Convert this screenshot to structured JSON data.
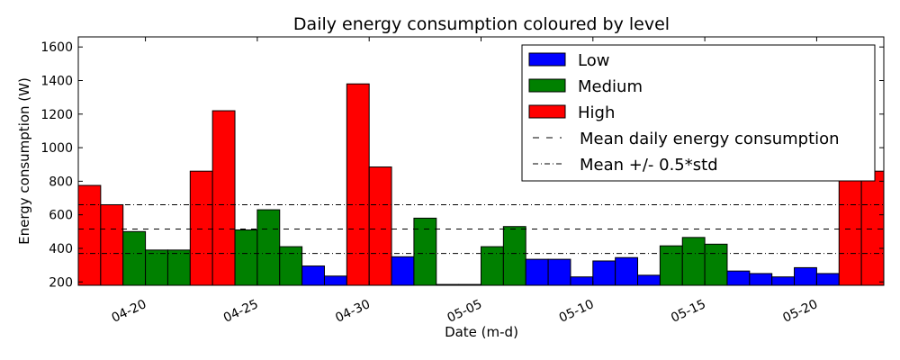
{
  "chart_data": {
    "type": "bar",
    "title": "Daily energy consumption coloured by level",
    "xlabel": "Date (m-d)",
    "ylabel": "Energy consumption (W)",
    "ylim": [
      180,
      1660
    ],
    "xlim": [
      "04-17",
      "05-24"
    ],
    "yticks": [
      200,
      400,
      600,
      800,
      1000,
      1200,
      1400,
      1600
    ],
    "xticks": [
      "04-20",
      "04-25",
      "04-30",
      "05-05",
      "05-10",
      "05-15",
      "05-20"
    ],
    "grid": false,
    "legend_position": "top-right",
    "colors": {
      "Low": "#0000ff",
      "Medium": "#008000",
      "High": "#ff0000"
    },
    "legend": [
      {
        "label": "Low",
        "kind": "patch",
        "color": "#0000ff"
      },
      {
        "label": "Medium",
        "kind": "patch",
        "color": "#008000"
      },
      {
        "label": "High",
        "kind": "patch",
        "color": "#ff0000"
      },
      {
        "label": "Mean daily energy consumption",
        "kind": "dashed"
      },
      {
        "label": "Mean +/-  0.5*std",
        "kind": "dashdot"
      }
    ],
    "mean_line": 515,
    "std_band": [
      370,
      660
    ],
    "bars": [
      {
        "date": "04-17",
        "value": 775,
        "level": "High"
      },
      {
        "date": "04-18",
        "value": 660,
        "level": "High"
      },
      {
        "date": "04-19",
        "value": 500,
        "level": "Medium"
      },
      {
        "date": "04-20",
        "value": 390,
        "level": "Medium"
      },
      {
        "date": "04-21",
        "value": 390,
        "level": "Medium"
      },
      {
        "date": "04-22",
        "value": 860,
        "level": "High"
      },
      {
        "date": "04-23",
        "value": 1220,
        "level": "High"
      },
      {
        "date": "04-24",
        "value": 510,
        "level": "Medium"
      },
      {
        "date": "04-25",
        "value": 630,
        "level": "Medium"
      },
      {
        "date": "04-26",
        "value": 410,
        "level": "Medium"
      },
      {
        "date": "04-27",
        "value": 295,
        "level": "Low"
      },
      {
        "date": "04-28",
        "value": 235,
        "level": "Low"
      },
      {
        "date": "04-29",
        "value": 1380,
        "level": "High"
      },
      {
        "date": "04-30",
        "value": 885,
        "level": "High"
      },
      {
        "date": "05-01",
        "value": 350,
        "level": "Low"
      },
      {
        "date": "05-02",
        "value": 580,
        "level": "Medium"
      },
      {
        "date": "05-03",
        "value": 185,
        "level": "Low"
      },
      {
        "date": "05-04",
        "value": 185,
        "level": "Low"
      },
      {
        "date": "05-05",
        "value": 410,
        "level": "Medium"
      },
      {
        "date": "05-06",
        "value": 530,
        "level": "Medium"
      },
      {
        "date": "05-07",
        "value": 335,
        "level": "Low"
      },
      {
        "date": "05-08",
        "value": 335,
        "level": "Low"
      },
      {
        "date": "05-09",
        "value": 230,
        "level": "Low"
      },
      {
        "date": "05-10",
        "value": 325,
        "level": "Low"
      },
      {
        "date": "05-11",
        "value": 345,
        "level": "Low"
      },
      {
        "date": "05-12",
        "value": 240,
        "level": "Low"
      },
      {
        "date": "05-13",
        "value": 415,
        "level": "Medium"
      },
      {
        "date": "05-14",
        "value": 465,
        "level": "Medium"
      },
      {
        "date": "05-15",
        "value": 425,
        "level": "Medium"
      },
      {
        "date": "05-16",
        "value": 265,
        "level": "Low"
      },
      {
        "date": "05-17",
        "value": 250,
        "level": "Low"
      },
      {
        "date": "05-18",
        "value": 230,
        "level": "Low"
      },
      {
        "date": "05-19",
        "value": 285,
        "level": "Low"
      },
      {
        "date": "05-20",
        "value": 250,
        "level": "Low"
      },
      {
        "date": "05-21",
        "value": 850,
        "level": "High"
      },
      {
        "date": "05-22",
        "value": 860,
        "level": "High"
      }
    ]
  }
}
